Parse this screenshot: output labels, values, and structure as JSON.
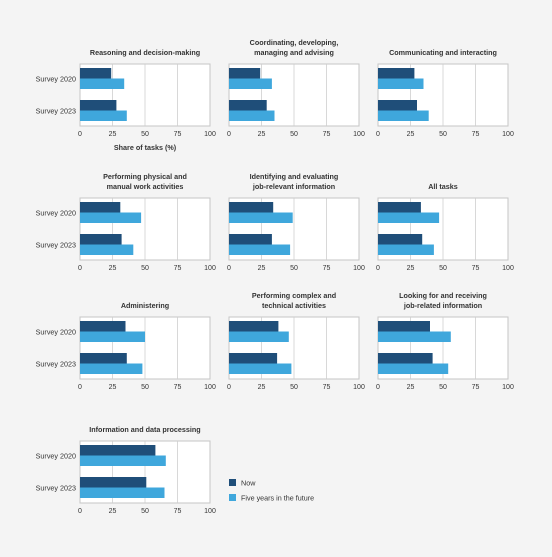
{
  "colors": {
    "now": "#1f4e79",
    "future": "#3fa7dc",
    "grid": "#cfcfcf",
    "frame": "#c6c6c6",
    "panel_bg": "#ffffff"
  },
  "legend": {
    "position": "bottom-right",
    "items": [
      "Now",
      "Five years in the future"
    ]
  },
  "x_axis_label": "Share of tasks (%)",
  "chart_data": [
    {
      "type": "bar",
      "orientation": "horizontal",
      "title": "Reasoning and decision-making",
      "categories": [
        "Survey 2020",
        "Survey 2023"
      ],
      "series": [
        {
          "name": "Now",
          "values": [
            24,
            28
          ]
        },
        {
          "name": "Five years in the future",
          "values": [
            34,
            36
          ]
        }
      ],
      "xlim": [
        0,
        100
      ],
      "xticks": [
        0,
        25,
        50,
        75,
        100
      ],
      "xlabel": "Share of tasks (%)",
      "grid": true
    },
    {
      "type": "bar",
      "orientation": "horizontal",
      "title": "Coordinating, developing, managing and advising",
      "categories": [
        "Survey 2020",
        "Survey 2023"
      ],
      "series": [
        {
          "name": "Now",
          "values": [
            24,
            29
          ]
        },
        {
          "name": "Five years in the future",
          "values": [
            33,
            35
          ]
        }
      ],
      "xlim": [
        0,
        100
      ],
      "xticks": [
        0,
        25,
        50,
        75,
        100
      ],
      "grid": true
    },
    {
      "type": "bar",
      "orientation": "horizontal",
      "title": "Communicating and interacting",
      "categories": [
        "Survey 2020",
        "Survey 2023"
      ],
      "series": [
        {
          "name": "Now",
          "values": [
            28,
            30
          ]
        },
        {
          "name": "Five years in the future",
          "values": [
            35,
            39
          ]
        }
      ],
      "xlim": [
        0,
        100
      ],
      "xticks": [
        0,
        25,
        50,
        75,
        100
      ],
      "grid": true
    },
    {
      "type": "bar",
      "orientation": "horizontal",
      "title": "Performing physical and manual work activities",
      "categories": [
        "Survey 2020",
        "Survey 2023"
      ],
      "series": [
        {
          "name": "Now",
          "values": [
            31,
            32
          ]
        },
        {
          "name": "Five years in the future",
          "values": [
            47,
            41
          ]
        }
      ],
      "xlim": [
        0,
        100
      ],
      "xticks": [
        0,
        25,
        50,
        75,
        100
      ],
      "grid": true
    },
    {
      "type": "bar",
      "orientation": "horizontal",
      "title": "Identifying and evaluating job-relevant information",
      "categories": [
        "Survey 2020",
        "Survey 2023"
      ],
      "series": [
        {
          "name": "Now",
          "values": [
            34,
            33
          ]
        },
        {
          "name": "Five years in the future",
          "values": [
            49,
            47
          ]
        }
      ],
      "xlim": [
        0,
        100
      ],
      "xticks": [
        0,
        25,
        50,
        75,
        100
      ],
      "grid": true
    },
    {
      "type": "bar",
      "orientation": "horizontal",
      "title": "All tasks",
      "categories": [
        "Survey 2020",
        "Survey 2023"
      ],
      "series": [
        {
          "name": "Now",
          "values": [
            33,
            34
          ]
        },
        {
          "name": "Five years in the future",
          "values": [
            47,
            43
          ]
        }
      ],
      "xlim": [
        0,
        100
      ],
      "xticks": [
        0,
        25,
        50,
        75,
        100
      ],
      "grid": true
    },
    {
      "type": "bar",
      "orientation": "horizontal",
      "title": "Administering",
      "categories": [
        "Survey 2020",
        "Survey 2023"
      ],
      "series": [
        {
          "name": "Now",
          "values": [
            35,
            36
          ]
        },
        {
          "name": "Five years in the future",
          "values": [
            50,
            48
          ]
        }
      ],
      "xlim": [
        0,
        100
      ],
      "xticks": [
        0,
        25,
        50,
        75,
        100
      ],
      "grid": true
    },
    {
      "type": "bar",
      "orientation": "horizontal",
      "title": "Performing complex and technical activities",
      "categories": [
        "Survey 2020",
        "Survey 2023"
      ],
      "series": [
        {
          "name": "Now",
          "values": [
            38,
            37
          ]
        },
        {
          "name": "Five years in the future",
          "values": [
            46,
            48
          ]
        }
      ],
      "xlim": [
        0,
        100
      ],
      "xticks": [
        0,
        25,
        50,
        75,
        100
      ],
      "grid": true
    },
    {
      "type": "bar",
      "orientation": "horizontal",
      "title": "Looking for and receiving job-related information",
      "categories": [
        "Survey 2020",
        "Survey 2023"
      ],
      "series": [
        {
          "name": "Now",
          "values": [
            40,
            42
          ]
        },
        {
          "name": "Five years in the future",
          "values": [
            56,
            54
          ]
        }
      ],
      "xlim": [
        0,
        100
      ],
      "xticks": [
        0,
        25,
        50,
        75,
        100
      ],
      "grid": true
    },
    {
      "type": "bar",
      "orientation": "horizontal",
      "title": "Information and data processing",
      "categories": [
        "Survey 2020",
        "Survey 2023"
      ],
      "series": [
        {
          "name": "Now",
          "values": [
            58,
            51
          ]
        },
        {
          "name": "Five years in the future",
          "values": [
            66,
            65
          ]
        }
      ],
      "xlim": [
        0,
        100
      ],
      "xticks": [
        0,
        25,
        50,
        75,
        100
      ],
      "grid": true
    }
  ]
}
